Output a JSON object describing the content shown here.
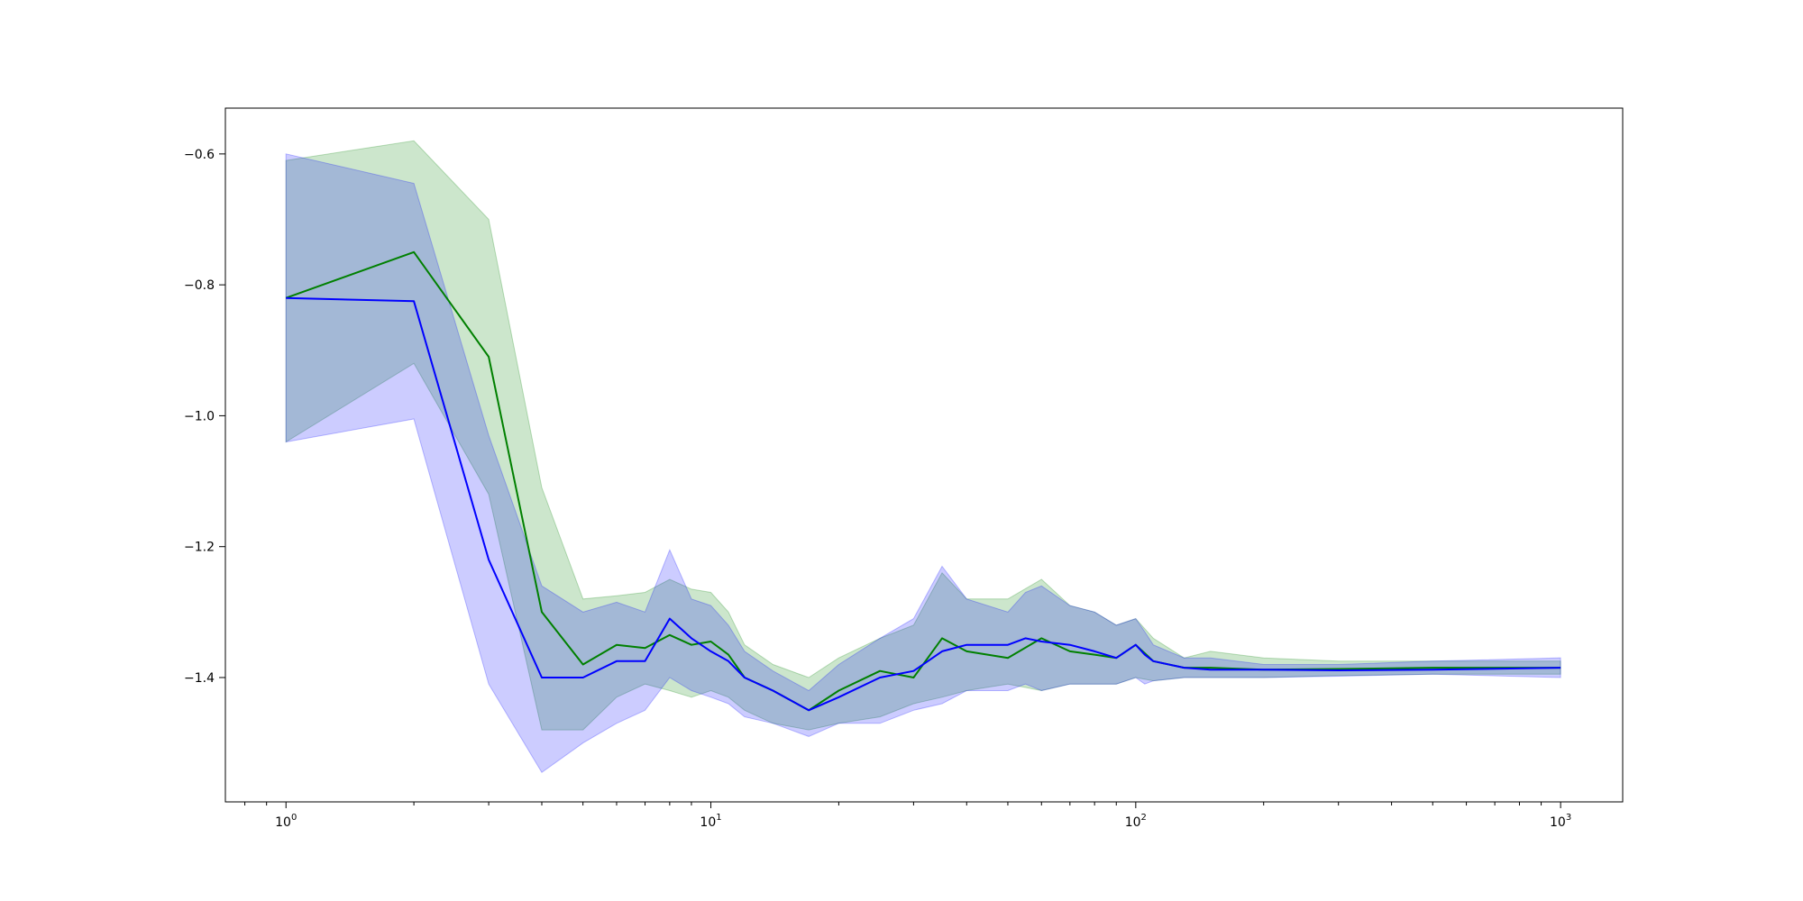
{
  "chart_data": {
    "type": "line",
    "x_scale": "log",
    "xlim": [
      0.72,
      1400
    ],
    "ylim": [
      -1.59,
      -0.53
    ],
    "x_ticks": [
      {
        "value": 1,
        "base": "10",
        "exp": "0"
      },
      {
        "value": 10,
        "base": "10",
        "exp": "1"
      },
      {
        "value": 100,
        "base": "10",
        "exp": "2"
      },
      {
        "value": 1000,
        "base": "10",
        "exp": "3"
      }
    ],
    "y_ticks": [
      {
        "value": -0.6,
        "label": "−0.6"
      },
      {
        "value": -0.8,
        "label": "−0.8"
      },
      {
        "value": -1.0,
        "label": "−1.0"
      },
      {
        "value": -1.2,
        "label": "−1.2"
      },
      {
        "value": -1.4,
        "label": "−1.4"
      }
    ],
    "grid": false,
    "legend": "none",
    "series": [
      {
        "color": "#008000",
        "band_color": "#008000",
        "x": [
          1,
          2,
          3,
          4,
          5,
          6,
          7,
          8,
          9,
          10,
          11,
          12,
          14,
          17,
          20,
          25,
          30,
          35,
          40,
          50,
          60,
          70,
          80,
          90,
          100,
          110,
          130,
          150,
          200,
          300,
          500,
          1000
        ],
        "mean": [
          -0.82,
          -0.75,
          -0.91,
          -1.3,
          -1.38,
          -1.35,
          -1.355,
          -1.335,
          -1.35,
          -1.345,
          -1.365,
          -1.4,
          -1.42,
          -1.45,
          -1.42,
          -1.39,
          -1.4,
          -1.34,
          -1.36,
          -1.37,
          -1.34,
          -1.36,
          -1.365,
          -1.37,
          -1.35,
          -1.375,
          -1.385,
          -1.385,
          -1.388,
          -1.387,
          -1.385,
          -1.385
        ],
        "lower": [
          -1.04,
          -0.92,
          -1.12,
          -1.48,
          -1.48,
          -1.43,
          -1.41,
          -1.42,
          -1.43,
          -1.42,
          -1.43,
          -1.45,
          -1.47,
          -1.48,
          -1.47,
          -1.46,
          -1.44,
          -1.43,
          -1.42,
          -1.41,
          -1.42,
          -1.41,
          -1.41,
          -1.41,
          -1.4,
          -1.405,
          -1.4,
          -1.4,
          -1.4,
          -1.397,
          -1.395,
          -1.395
        ],
        "upper": [
          -0.61,
          -0.58,
          -0.7,
          -1.11,
          -1.28,
          -1.275,
          -1.27,
          -1.25,
          -1.265,
          -1.27,
          -1.3,
          -1.35,
          -1.38,
          -1.4,
          -1.37,
          -1.34,
          -1.32,
          -1.24,
          -1.28,
          -1.28,
          -1.25,
          -1.29,
          -1.3,
          -1.32,
          -1.31,
          -1.34,
          -1.37,
          -1.36,
          -1.37,
          -1.375,
          -1.375,
          -1.375
        ]
      },
      {
        "color": "#0000ff",
        "band_color": "#0000ff",
        "x": [
          1,
          2,
          3,
          4,
          5,
          6,
          7,
          8,
          9,
          10,
          11,
          12,
          14,
          17,
          20,
          25,
          30,
          35,
          40,
          50,
          55,
          60,
          70,
          80,
          90,
          100,
          105,
          110,
          130,
          150,
          200,
          300,
          500,
          1000
        ],
        "mean": [
          -0.82,
          -0.825,
          -1.22,
          -1.4,
          -1.4,
          -1.375,
          -1.375,
          -1.31,
          -1.34,
          -1.36,
          -1.375,
          -1.4,
          -1.42,
          -1.45,
          -1.43,
          -1.4,
          -1.39,
          -1.36,
          -1.35,
          -1.35,
          -1.34,
          -1.345,
          -1.35,
          -1.36,
          -1.37,
          -1.35,
          -1.365,
          -1.375,
          -1.385,
          -1.388,
          -1.388,
          -1.389,
          -1.388,
          -1.385
        ],
        "lower": [
          -1.04,
          -1.005,
          -1.41,
          -1.545,
          -1.5,
          -1.47,
          -1.45,
          -1.4,
          -1.42,
          -1.43,
          -1.44,
          -1.46,
          -1.47,
          -1.49,
          -1.47,
          -1.47,
          -1.45,
          -1.44,
          -1.42,
          -1.42,
          -1.41,
          -1.42,
          -1.41,
          -1.41,
          -1.41,
          -1.4,
          -1.41,
          -1.405,
          -1.4,
          -1.4,
          -1.4,
          -1.398,
          -1.395,
          -1.4
        ],
        "upper": [
          -0.6,
          -0.645,
          -1.03,
          -1.26,
          -1.3,
          -1.285,
          -1.3,
          -1.205,
          -1.28,
          -1.29,
          -1.32,
          -1.36,
          -1.39,
          -1.42,
          -1.38,
          -1.34,
          -1.31,
          -1.23,
          -1.28,
          -1.3,
          -1.27,
          -1.26,
          -1.29,
          -1.3,
          -1.32,
          -1.31,
          -1.33,
          -1.35,
          -1.37,
          -1.37,
          -1.38,
          -1.38,
          -1.375,
          -1.37
        ]
      }
    ]
  }
}
